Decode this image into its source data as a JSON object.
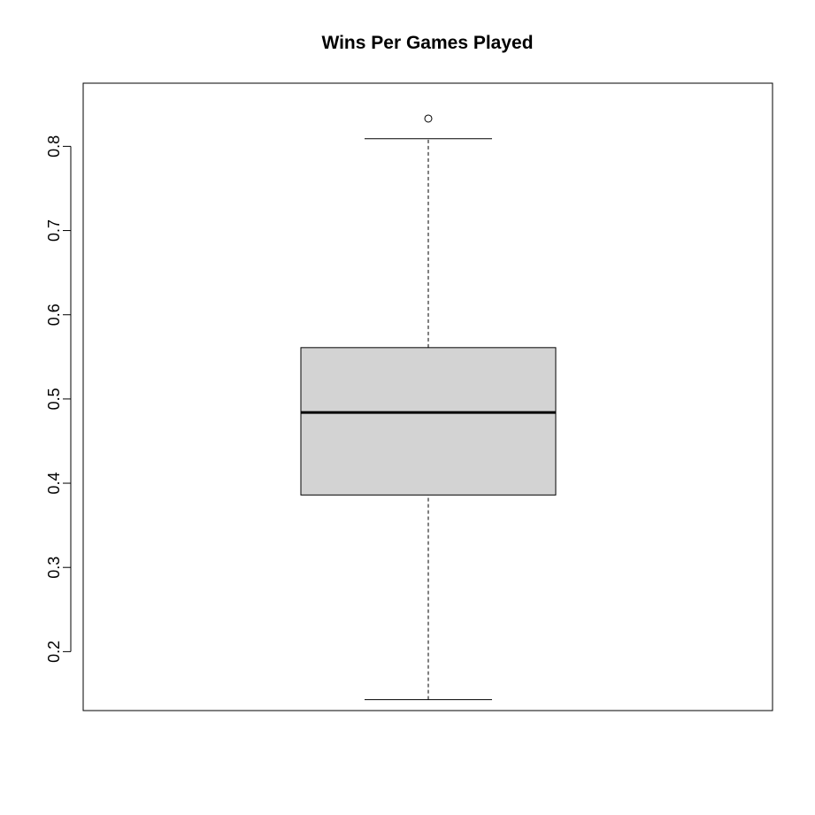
{
  "chart_data": {
    "type": "boxplot",
    "title": "Wins Per Games Played",
    "xlabel": "",
    "ylabel": "",
    "ylim": [
      0.13,
      0.875
    ],
    "yticks": [
      0.2,
      0.3,
      0.4,
      0.5,
      0.6,
      0.7,
      0.8
    ],
    "ytick_labels": [
      "0.2",
      "0.3",
      "0.4",
      "0.5",
      "0.6",
      "0.7",
      "0.8"
    ],
    "box": {
      "whisker_low": 0.143,
      "q1": 0.386,
      "median": 0.484,
      "q3": 0.561,
      "whisker_high": 0.809,
      "outliers": [
        0.833
      ]
    },
    "grid": false,
    "legend": "none",
    "colors": {
      "box_fill": "#d3d3d3",
      "stroke": "#000000",
      "background": "#ffffff"
    }
  }
}
